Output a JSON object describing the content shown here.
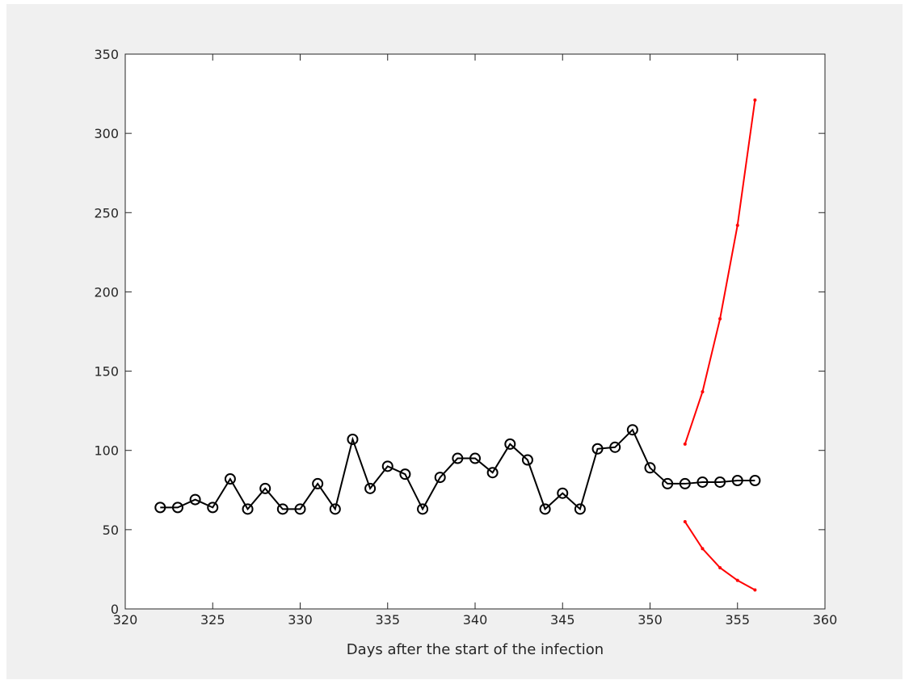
{
  "chart_data": {
    "type": "line",
    "title": "",
    "xlabel": "Days after the start of the infection",
    "ylabel": "",
    "xlim": [
      320,
      360
    ],
    "ylim": [
      0,
      350
    ],
    "xticks": [
      320,
      325,
      330,
      335,
      340,
      345,
      350,
      355,
      360
    ],
    "yticks": [
      0,
      50,
      100,
      150,
      200,
      250,
      300,
      350
    ],
    "grid": false,
    "legend": "none",
    "series": [
      {
        "color": "#000000",
        "marker": "circle",
        "x": [
          322,
          323,
          324,
          325,
          326,
          327,
          328,
          329,
          330,
          331,
          332,
          333,
          334,
          335,
          336,
          337,
          338,
          339,
          340,
          341,
          342,
          343,
          344,
          345,
          346,
          347,
          348,
          349,
          350,
          351,
          352,
          353,
          354,
          355,
          356
        ],
        "y": [
          64,
          64,
          69,
          64,
          82,
          63,
          76,
          63,
          63,
          79,
          63,
          107,
          76,
          90,
          85,
          63,
          83,
          95,
          95,
          86,
          104,
          94,
          63,
          73,
          63,
          101,
          102,
          113,
          89,
          79,
          79,
          80,
          80,
          81,
          81
        ]
      },
      {
        "color": "#ff0000",
        "marker": "dot",
        "x": [
          352,
          353,
          354,
          355,
          356
        ],
        "y": [
          104,
          137,
          183,
          242,
          321
        ]
      },
      {
        "color": "#ff0000",
        "marker": "dot",
        "x": [
          352,
          353,
          354,
          355,
          356
        ],
        "y": [
          55,
          38,
          26,
          18,
          12
        ]
      }
    ]
  }
}
